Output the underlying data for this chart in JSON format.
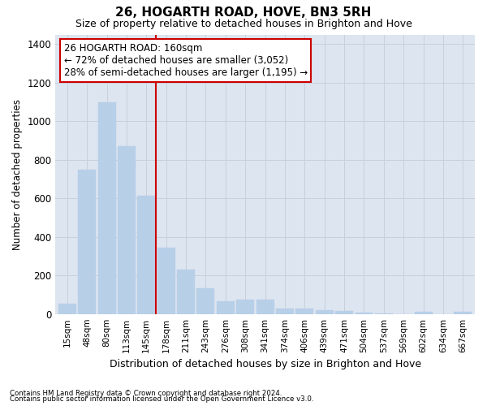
{
  "title": "26, HOGARTH ROAD, HOVE, BN3 5RH",
  "subtitle": "Size of property relative to detached houses in Brighton and Hove",
  "xlabel": "Distribution of detached houses by size in Brighton and Hove",
  "ylabel": "Number of detached properties",
  "footnote1": "Contains HM Land Registry data © Crown copyright and database right 2024.",
  "footnote2": "Contains public sector information licensed under the Open Government Licence v3.0.",
  "categories": [
    "15sqm",
    "48sqm",
    "80sqm",
    "113sqm",
    "145sqm",
    "178sqm",
    "211sqm",
    "243sqm",
    "276sqm",
    "308sqm",
    "341sqm",
    "374sqm",
    "406sqm",
    "439sqm",
    "471sqm",
    "504sqm",
    "537sqm",
    "569sqm",
    "602sqm",
    "634sqm",
    "667sqm"
  ],
  "values": [
    55,
    750,
    1100,
    870,
    615,
    345,
    230,
    135,
    65,
    75,
    75,
    28,
    28,
    20,
    15,
    8,
    2,
    0,
    10,
    0,
    10
  ],
  "bar_color": "#b8cfe8",
  "bar_edgecolor": "#b8cfe8",
  "grid_color": "#c8d0dc",
  "bg_color": "#dde5f0",
  "annotation_text": "26 HOGARTH ROAD: 160sqm\n← 72% of detached houses are smaller (3,052)\n28% of semi-detached houses are larger (1,195) →",
  "vline_x": 5.0,
  "vline_color": "#cc0000",
  "annotation_box_edgecolor": "#cc0000",
  "ylim": [
    0,
    1450
  ],
  "yticks": [
    0,
    200,
    400,
    600,
    800,
    1000,
    1200,
    1400
  ],
  "title_fontsize": 11,
  "subtitle_fontsize": 9,
  "ylabel_fontsize": 8.5,
  "xlabel_fontsize": 9
}
